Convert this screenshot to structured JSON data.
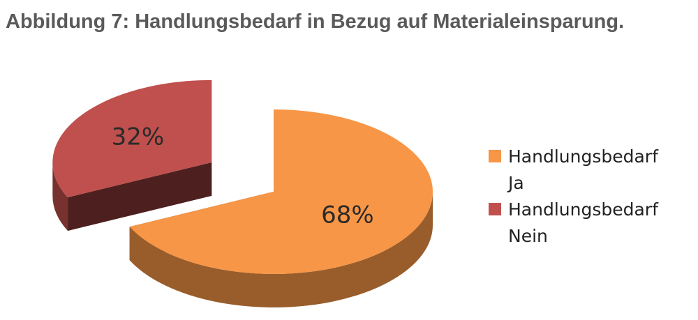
{
  "chart_data": {
    "type": "pie",
    "title": "Abbildung 7: Handlungsbedarf in Bezug auf Materialeinsparung.",
    "categories": [
      "Handlungsbedarf Ja",
      "Handlungsbedarf Nein"
    ],
    "values": [
      68,
      32
    ],
    "value_labels": [
      "68%",
      "32%"
    ],
    "colors": [
      "#f79646",
      "#c0504d"
    ]
  }
}
